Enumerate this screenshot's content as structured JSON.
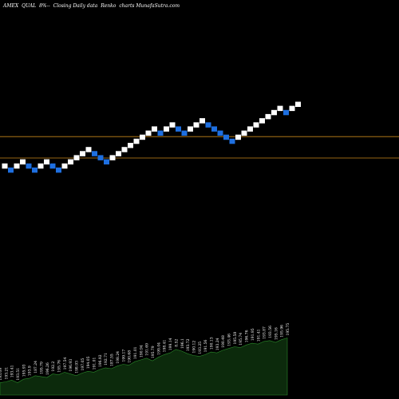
{
  "header": {
    "exchange": "AMEX",
    "symbol": "QUAL",
    "change": "8%",
    "sep": "--",
    "mode": "Closing Daily data",
    "chart_kind": "Renko",
    "site": "charts MunafaSutra.com"
  },
  "colors": {
    "background": "#000000",
    "up_brick": "#ffffff",
    "down_brick": "#1e6fe0",
    "level_line": "#c8861a",
    "volume_fill": "#0c2a0c",
    "volume_edge": "#2a8a2a"
  },
  "chart_data": [
    {
      "type": "renko",
      "x": [
        1,
        2,
        3,
        4,
        5,
        6,
        7,
        8,
        9,
        10,
        11,
        12,
        13,
        14,
        15,
        16,
        17,
        18,
        19,
        20,
        21,
        22,
        23,
        24,
        25,
        26,
        27,
        28,
        29,
        30,
        31,
        32,
        33,
        34,
        35,
        36,
        37,
        38,
        39,
        40,
        41,
        42,
        43,
        44,
        45,
        46,
        47,
        48,
        49,
        50
      ],
      "levels": [
        0,
        -1,
        0,
        1,
        0,
        -1,
        0,
        1,
        0,
        -1,
        0,
        1,
        2,
        3,
        4,
        3,
        2,
        1,
        2,
        3,
        4,
        5,
        6,
        7,
        8,
        9,
        8,
        9,
        10,
        9,
        8,
        9,
        10,
        11,
        10,
        9,
        8,
        7,
        6,
        7,
        8,
        9,
        10,
        11,
        12,
        13,
        14,
        13,
        14,
        15
      ],
      "direction": [
        "up",
        "down",
        "up",
        "up",
        "down",
        "down",
        "up",
        "up",
        "down",
        "down",
        "up",
        "up",
        "up",
        "up",
        "up",
        "down",
        "down",
        "down",
        "up",
        "up",
        "up",
        "up",
        "up",
        "up",
        "up",
        "up",
        "down",
        "up",
        "up",
        "down",
        "down",
        "up",
        "up",
        "up",
        "down",
        "down",
        "down",
        "down",
        "down",
        "up",
        "up",
        "up",
        "up",
        "up",
        "up",
        "up",
        "up",
        "down",
        "up",
        "up"
      ],
      "reference_levels": [
        0,
        5.2
      ]
    },
    {
      "type": "area",
      "labels": [
        "193.09",
        "193.21",
        "193.41",
        "193.51",
        "195.93",
        "193.9",
        "187.24",
        "195.79",
        "196.26",
        "192.2",
        "195.76",
        "197.54",
        "196.93",
        "198.93",
        "197.05",
        "194.05",
        "191.01",
        "196.92",
        "192.71",
        "187.55",
        "198.24",
        "199.17",
        "190.68",
        "191.01",
        "190.94",
        "191.69",
        "195.79",
        "199.04",
        "198.41",
        "199.14",
        "8.52",
        "196.1",
        "193.72",
        "190.12",
        "193.25",
        "191.56",
        "190.13",
        "193.24",
        "190.48",
        "193.46",
        "195.58",
        "195.74",
        "196.76",
        "191.95",
        "191.41",
        "193.87",
        "193.56",
        "195.16",
        "195.96",
        "195.75"
      ],
      "values": [
        14,
        15,
        17,
        14,
        18,
        19,
        22,
        21,
        20,
        24,
        23,
        26,
        24,
        22,
        25,
        27,
        26,
        29,
        31,
        30,
        33,
        35,
        34,
        38,
        40,
        42,
        39,
        43,
        46,
        48,
        52,
        50,
        47,
        45,
        44,
        46,
        49,
        48,
        51,
        53,
        55,
        54,
        57,
        59,
        58,
        61,
        62,
        60,
        63,
        65
      ]
    }
  ]
}
